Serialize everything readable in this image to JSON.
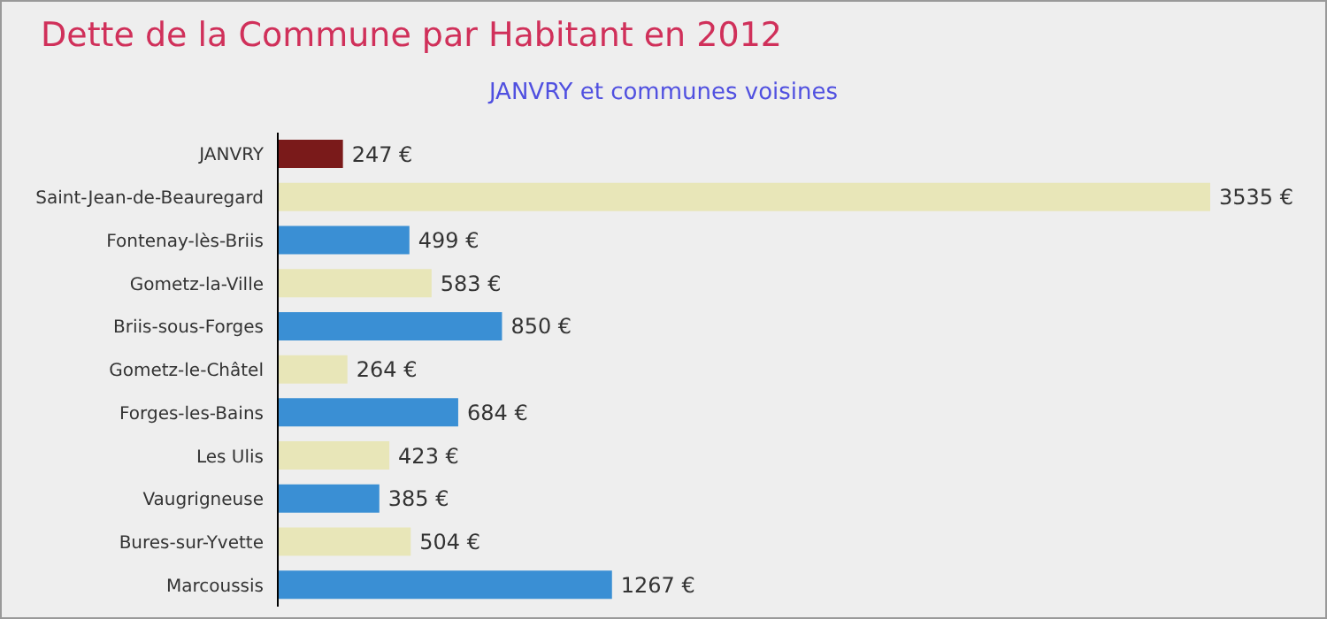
{
  "chart_data": {
    "type": "bar",
    "orientation": "horizontal",
    "title": "Dette de la Commune par Habitant en 2012",
    "subtitle": "JANVRY et communes voisines",
    "categories": [
      "JANVRY",
      "Saint-Jean-de-Beauregard",
      "Fontenay-lès-Briis",
      "Gometz-la-Ville",
      "Briis-sous-Forges",
      "Gometz-le-Châtel",
      "Forges-les-Bains",
      "Les Ulis",
      "Vaugrigneuse",
      "Bures-sur-Yvette",
      "Marcoussis"
    ],
    "values": [
      247,
      3535,
      499,
      583,
      850,
      264,
      684,
      423,
      385,
      504,
      1267
    ],
    "value_labels": [
      "247 €",
      "3535 €",
      "499 €",
      "583 €",
      "850 €",
      "264 €",
      "684 €",
      "423 €",
      "385 €",
      "504 €",
      "1267 €"
    ],
    "colors": [
      "#7a1a1a",
      "#e8e6b8",
      "#3a8fd4",
      "#e8e6b8",
      "#3a8fd4",
      "#e8e6b8",
      "#3a8fd4",
      "#e8e6b8",
      "#3a8fd4",
      "#e8e6b8",
      "#3a8fd4"
    ],
    "grid": false,
    "legend": false
  }
}
